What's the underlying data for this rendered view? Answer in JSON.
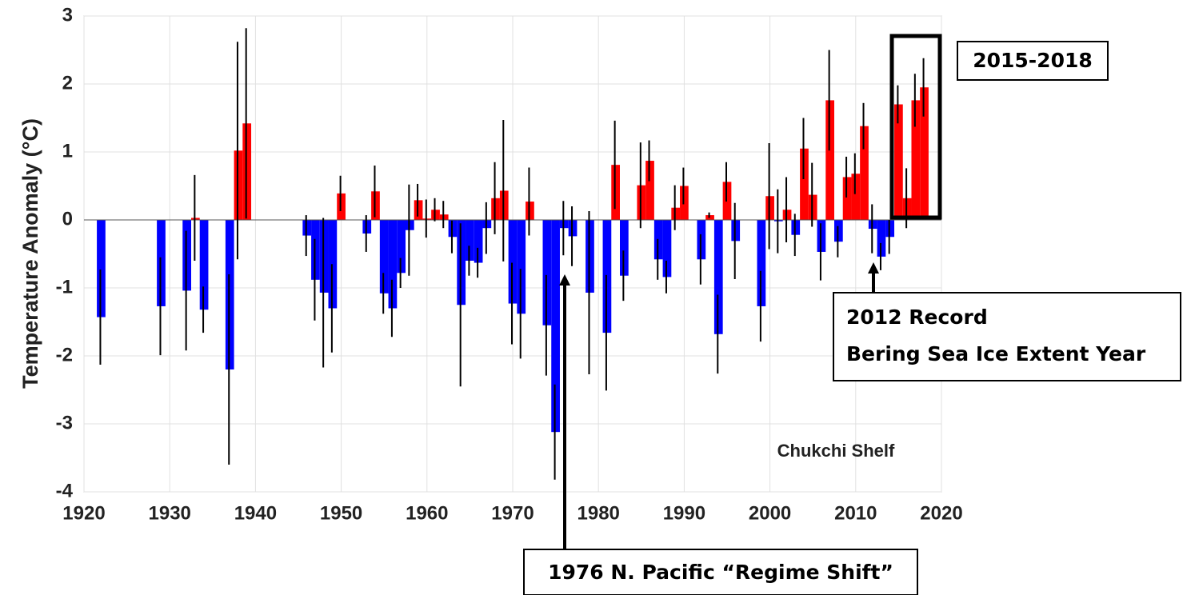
{
  "chart_data": {
    "type": "bar",
    "ylabel": "Temperature Anomaly (°C)",
    "xlim": [
      1920,
      2020
    ],
    "xticks": [
      1920,
      1930,
      1940,
      1950,
      1960,
      1970,
      1980,
      1990,
      2000,
      2010,
      2020
    ],
    "ylim": [
      -4,
      3
    ],
    "yticks": [
      -4,
      -3,
      -2,
      -1,
      0,
      1,
      2,
      3
    ],
    "grid": true,
    "positive_color": "#ff0000",
    "negative_color": "#0000ff",
    "x": [
      1922,
      1929,
      1932,
      1933,
      1934,
      1937,
      1938,
      1939,
      1946,
      1947,
      1948,
      1949,
      1950,
      1953,
      1954,
      1955,
      1956,
      1957,
      1958,
      1959,
      1960,
      1961,
      1962,
      1963,
      1964,
      1965,
      1966,
      1967,
      1968,
      1969,
      1970,
      1971,
      1972,
      1974,
      1975,
      1976,
      1977,
      1979,
      1981,
      1982,
      1983,
      1985,
      1986,
      1987,
      1988,
      1989,
      1990,
      1992,
      1993,
      1994,
      1995,
      1996,
      1999,
      2000,
      2001,
      2002,
      2003,
      2004,
      2005,
      2006,
      2007,
      2008,
      2009,
      2010,
      2011,
      2012,
      2013,
      2014,
      2015,
      2016,
      2017,
      2018
    ],
    "values": [
      -1.43,
      -1.27,
      -1.04,
      0.03,
      -1.32,
      -2.2,
      1.02,
      1.42,
      -0.23,
      -0.88,
      -1.07,
      -1.3,
      0.39,
      -0.2,
      0.42,
      -1.08,
      -1.3,
      -0.78,
      -0.15,
      0.29,
      0.02,
      0.15,
      0.08,
      -0.25,
      -1.25,
      -0.6,
      -0.63,
      -0.12,
      0.32,
      0.43,
      -1.23,
      -1.38,
      0.27,
      -1.55,
      -3.12,
      -0.12,
      -0.24,
      -1.07,
      -1.66,
      0.81,
      -0.82,
      0.51,
      0.87,
      -0.58,
      -0.84,
      0.18,
      0.5,
      -0.58,
      0.07,
      -1.68,
      0.56,
      -0.31,
      -1.27,
      0.35,
      -0.02,
      0.15,
      -0.22,
      1.05,
      0.37,
      -0.47,
      1.76,
      -0.32,
      0.63,
      0.68,
      1.38,
      -0.13,
      -0.54,
      -0.25,
      1.7,
      0.32,
      1.76,
      1.95
    ],
    "errors": [
      0.7,
      0.72,
      0.88,
      0.63,
      0.34,
      1.4,
      1.6,
      1.4,
      0.3,
      0.6,
      1.1,
      0.65,
      0.26,
      0.27,
      0.38,
      0.3,
      0.42,
      0.22,
      0.67,
      0.24,
      0.28,
      0.17,
      0.2,
      0.24,
      1.2,
      0.22,
      0.22,
      0.38,
      0.53,
      1.04,
      0.6,
      0.66,
      0.5,
      0.74,
      0.7,
      0.4,
      0.44,
      1.2,
      0.85,
      0.65,
      0.37,
      0.63,
      0.3,
      0.3,
      0.24,
      0.33,
      0.27,
      0.37,
      0.04,
      0.58,
      0.29,
      0.56,
      0.52,
      0.78,
      0.47,
      0.48,
      0.31,
      0.45,
      0.47,
      0.42,
      0.74,
      0.23,
      0.3,
      0.3,
      0.34,
      0.36,
      0.2,
      0.25,
      0.28,
      0.44,
      0.39,
      0.43
    ],
    "annotations": {
      "region": "Chukchi Shelf",
      "period": "2015-2018",
      "record": [
        "2012 Record",
        "Bering Sea Ice Extent Year"
      ],
      "regime": "1976 N. Pacific “Regime Shift”"
    }
  }
}
